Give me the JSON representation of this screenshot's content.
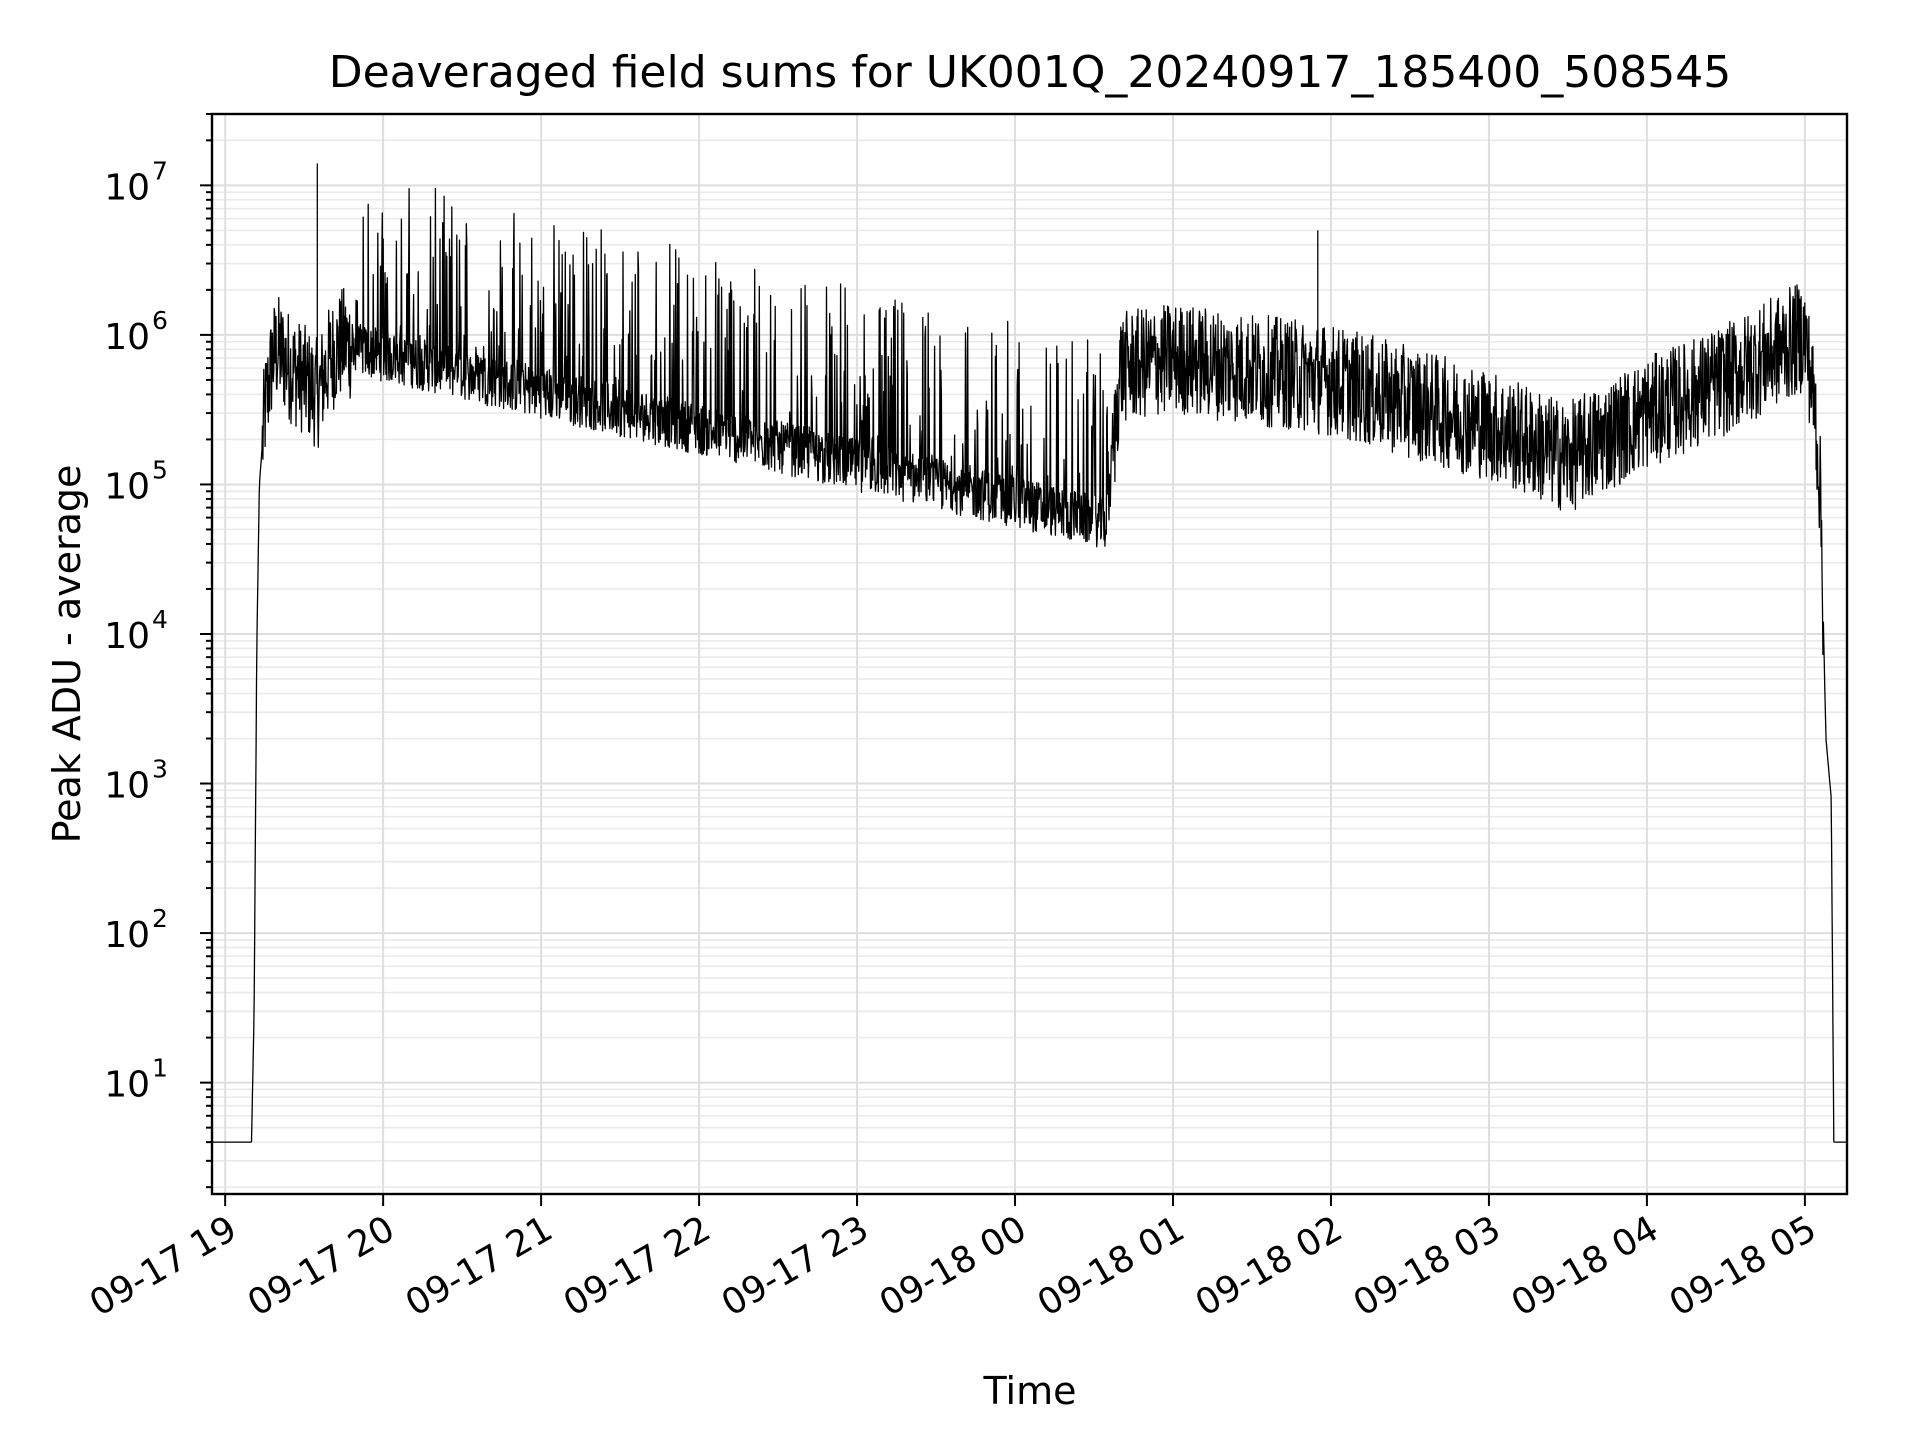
{
  "chart_data": {
    "type": "line",
    "title": "Deaveraged field sums for UK001Q_20240917_185400_508545",
    "xlabel": "Time",
    "ylabel": "Peak ADU - average",
    "yscale": "log",
    "ylim": [
      1.8,
      30000000
    ],
    "xlim": [
      "2024-09-17 18:55",
      "2024-09-18 05:16"
    ],
    "grid": true,
    "grid_minor": true,
    "x_ticks": [
      "2024-09-17 19:00",
      "2024-09-17 20:00",
      "2024-09-17 21:00",
      "2024-09-17 22:00",
      "2024-09-17 23:00",
      "2024-09-18 00:00",
      "2024-09-18 01:00",
      "2024-09-18 02:00",
      "2024-09-18 03:00",
      "2024-09-18 04:00",
      "2024-09-18 05:00"
    ],
    "x_tick_labels": [
      "09-17 19",
      "09-17 20",
      "09-17 21",
      "09-17 22",
      "09-17 23",
      "09-18 00",
      "09-18 01",
      "09-18 02",
      "09-18 03",
      "09-18 04",
      "09-18 05"
    ],
    "y_ticks": [
      10,
      100,
      1000,
      10000,
      100000,
      1000000,
      10000000
    ],
    "y_tick_labels": [
      {
        "base": "10",
        "exp": "1"
      },
      {
        "base": "10",
        "exp": "2"
      },
      {
        "base": "10",
        "exp": "3"
      },
      {
        "base": "10",
        "exp": "4"
      },
      {
        "base": "10",
        "exp": "5"
      },
      {
        "base": "10",
        "exp": "6"
      },
      {
        "base": "10",
        "exp": "7"
      }
    ],
    "series": [
      {
        "color": "#000000",
        "x": [
          "2024-09-17 18:55",
          "2024-09-17 19:10",
          "2024-09-17 19:11",
          "2024-09-17 19:12",
          "2024-09-17 19:13",
          "2024-09-17 19:15",
          "2024-09-17 19:18",
          "2024-09-17 19:20",
          "2024-09-17 19:25",
          "2024-09-17 19:30",
          "2024-09-17 19:35",
          "2024-09-17 19:40",
          "2024-09-17 19:45",
          "2024-09-17 19:50",
          "2024-09-18 00:35",
          "2024-09-18 00:40",
          "2024-09-18 01:00",
          "2024-09-18 02:00",
          "2024-09-18 03:00",
          "2024-09-18 03:30",
          "2024-09-18 04:00",
          "2024-09-18 04:30",
          "2024-09-18 05:00",
          "2024-09-18 05:04",
          "2024-09-18 05:06",
          "2024-09-18 05:08",
          "2024-09-18 05:10",
          "2024-09-18 05:11",
          "2024-09-18 05:12",
          "2024-09-18 05:16"
        ],
        "y": [
          4,
          4,
          30,
          8000,
          100000,
          300000,
          700000,
          800000,
          600000,
          500000,
          400000,
          700000,
          900000,
          800000,
          55000,
          600000,
          700000,
          500000,
          250000,
          150000,
          300000,
          500000,
          1000000,
          300000,
          80000,
          2000,
          800,
          4,
          4,
          4
        ]
      }
    ],
    "annotations": [
      {
        "x": "2024-09-17 19:35",
        "y": 14000000
      },
      {
        "x": "2024-09-18 01:55",
        "y": 5000000
      }
    ]
  }
}
